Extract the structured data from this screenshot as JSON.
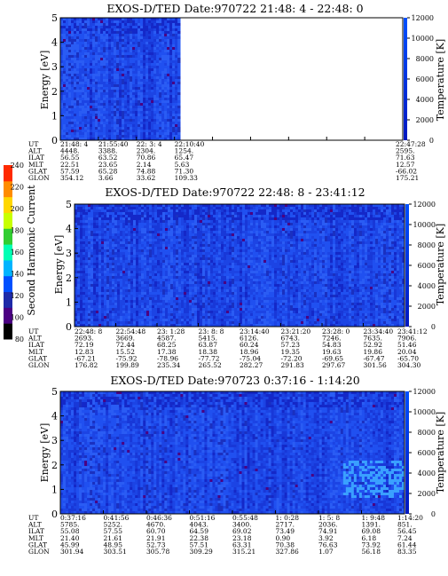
{
  "colorbar_main": {
    "label": "Second Harmonic Current",
    "ticks": [
      "80",
      "100",
      "120",
      "140",
      "160",
      "180",
      "200",
      "220",
      "240"
    ],
    "colors": [
      "#000000",
      "#4b0082",
      "#1e2aa8",
      "#0050ff",
      "#00b4ff",
      "#00ffb4",
      "#32cd32",
      "#c8ff00",
      "#ffd700",
      "#ff8c00",
      "#ff2a00"
    ]
  },
  "chart_data": [
    {
      "type": "heatmap",
      "title": "EXOS-D/TED   Date:970722  21:48: 4 - 22:48: 0",
      "ylabel": "Energy [eV]",
      "ylim": [
        0,
        5
      ],
      "y_ticks": [
        "0",
        "1",
        "2",
        "3",
        "4",
        "5"
      ],
      "right_axis_label": "Temperature [K]",
      "right_ylim": [
        0,
        12000
      ],
      "right_ticks": [
        "0",
        "2000",
        "4000",
        "6000",
        "8000",
        "10000",
        "12000"
      ],
      "data_coverage": [
        0,
        0.35
      ],
      "orbit_rows": [
        {
          "label": "UT",
          "values": [
            "21:48: 4",
            "21:55:40",
            "22: 3: 4",
            "22:10:40",
            "",
            "",
            "",
            "",
            "",
            "22:47:28"
          ]
        },
        {
          "label": "ALT",
          "values": [
            "4448.",
            "3388.",
            "2304.",
            "1254.",
            "",
            "",
            "",
            "",
            "",
            "2595."
          ]
        },
        {
          "label": "ILAT",
          "values": [
            "56.55",
            "63.52",
            "70.86",
            "65.47",
            "",
            "",
            "",
            "",
            "",
            "71.63"
          ]
        },
        {
          "label": "MLT",
          "values": [
            "22.51",
            "23.65",
            "2.14",
            "5.63",
            "",
            "",
            "",
            "",
            "",
            "12.57"
          ]
        },
        {
          "label": "GLAT",
          "values": [
            "57.59",
            "65.28",
            "74.88",
            "71.30",
            "",
            "",
            "",
            "",
            "",
            "-66.02"
          ]
        },
        {
          "label": "GLON",
          "values": [
            "354.12",
            "3.66",
            "33.62",
            "109.33",
            "",
            "",
            "",
            "",
            "",
            "175.21"
          ]
        }
      ]
    },
    {
      "type": "heatmap",
      "title": "EXOS-D/TED   Date:970722  22:48: 8 - 23:41:12",
      "ylabel": "Energy [eV]",
      "ylim": [
        0,
        5
      ],
      "y_ticks": [
        "0",
        "1",
        "2",
        "3",
        "4",
        "5"
      ],
      "right_axis_label": "Temperature [K]",
      "right_ylim": [
        0,
        12000
      ],
      "right_ticks": [
        "0",
        "2000",
        "4000",
        "6000",
        "8000",
        "10000",
        "12000"
      ],
      "data_coverage": [
        0,
        1
      ],
      "orbit_rows": [
        {
          "label": "UT",
          "values": [
            "22:48: 8",
            "22:54:48",
            "23: 1:28",
            "23: 8: 8",
            "23:14:40",
            "23:21:20",
            "23:28: 0",
            "23:34:40",
            "23:41:12"
          ]
        },
        {
          "label": "ALT",
          "values": [
            "2693.",
            "3669.",
            "4587.",
            "5415.",
            "6126.",
            "6743.",
            "7246.",
            "7635.",
            "7906."
          ]
        },
        {
          "label": "ILAT",
          "values": [
            "72.19",
            "72.44",
            "68.25",
            "63.87",
            "60.24",
            "57.23",
            "54.83",
            "52.92",
            "51.46"
          ]
        },
        {
          "label": "MLT",
          "values": [
            "12.83",
            "15.52",
            "17.38",
            "18.38",
            "18.96",
            "19.35",
            "19.63",
            "19.86",
            "20.04"
          ]
        },
        {
          "label": "GLAT",
          "values": [
            "-67.21",
            "-75.92",
            "-78.96",
            "-77.72",
            "-75.04",
            "-72.20",
            "-69.65",
            "-67.47",
            "-65.70"
          ]
        },
        {
          "label": "GLON",
          "values": [
            "176.82",
            "199.89",
            "235.34",
            "265.52",
            "282.27",
            "291.83",
            "297.67",
            "301.56",
            "304.30"
          ]
        }
      ]
    },
    {
      "type": "heatmap",
      "title": "EXOS-D/TED   Date:970723   0:37:16 - 1:14:20",
      "ylabel": "Energy [eV]",
      "ylim": [
        0,
        5
      ],
      "y_ticks": [
        "0",
        "1",
        "2",
        "3",
        "4",
        "5"
      ],
      "right_axis_label": "Temperature [K]",
      "right_ylim": [
        0,
        12000
      ],
      "right_ticks": [
        "0",
        "2000",
        "4000",
        "6000",
        "8000",
        "10000",
        "12000"
      ],
      "data_coverage": [
        0,
        1
      ],
      "orbit_rows": [
        {
          "label": "UT",
          "values": [
            "0:37:16",
            "0:41:56",
            "0:46:36",
            "0:51:16",
            "0:55:48",
            "1: 0:28",
            "1: 5: 8",
            "1: 9:48",
            "1:14:20"
          ]
        },
        {
          "label": "ALT",
          "values": [
            "5785.",
            "5252.",
            "4670.",
            "4043.",
            "3400.",
            "2717.",
            "2036.",
            "1391.",
            "851."
          ]
        },
        {
          "label": "ILAT",
          "values": [
            "55.08",
            "57.55",
            "60.70",
            "64.59",
            "69.02",
            "73.49",
            "74.91",
            "69.08",
            "56.45"
          ]
        },
        {
          "label": "MLT",
          "values": [
            "21.40",
            "21.61",
            "21.91",
            "22.38",
            "23.18",
            "0.90",
            "3.92",
            "6.18",
            "7.24"
          ]
        },
        {
          "label": "GLAT",
          "values": [
            "45.99",
            "48.95",
            "52.73",
            "57.51",
            "63.31",
            "70.38",
            "76.63",
            "73.92",
            "61.44"
          ]
        },
        {
          "label": "GLON",
          "values": [
            "301.94",
            "303.51",
            "305.78",
            "309.29",
            "315.21",
            "327.86",
            "1.07",
            "56.18",
            "83.35"
          ]
        }
      ]
    }
  ]
}
